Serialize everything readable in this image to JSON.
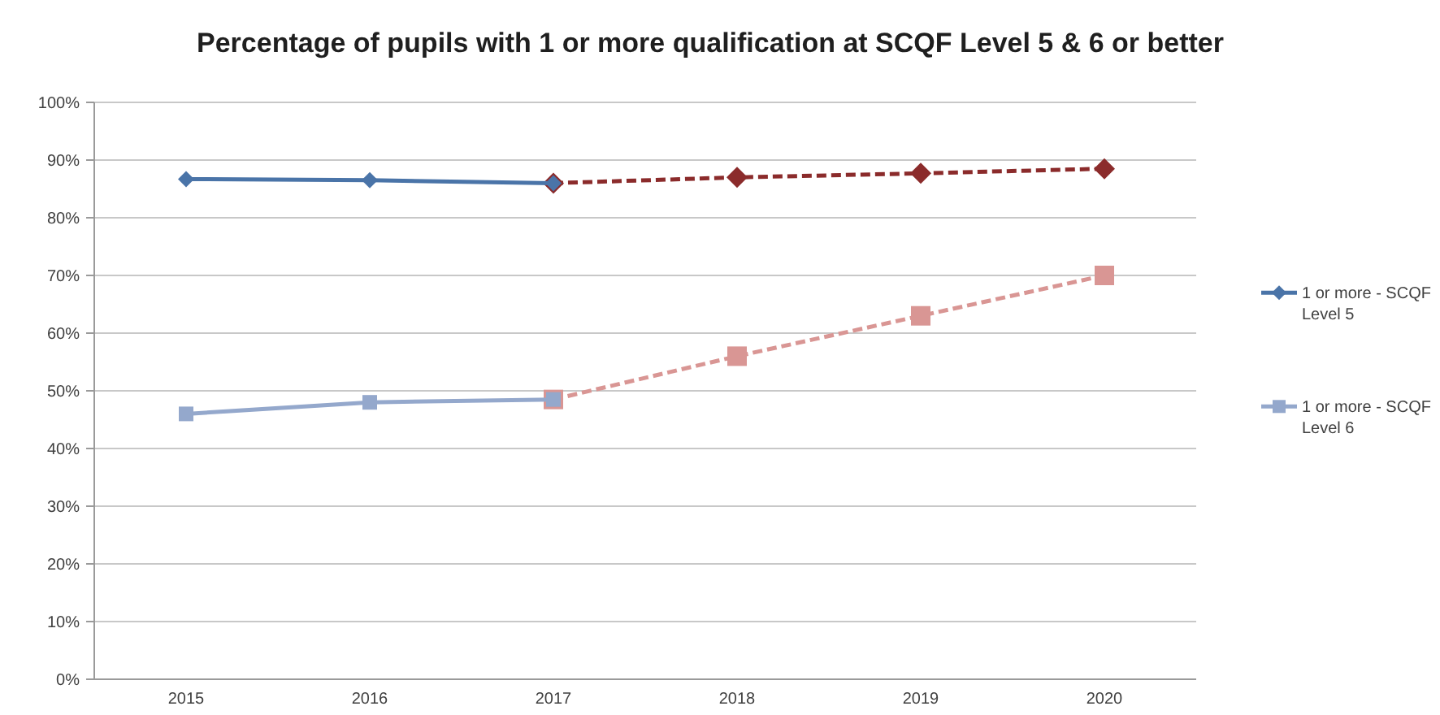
{
  "chart_data": {
    "type": "line",
    "title": "Percentage of pupils with 1 or more qualification at SCQF Level 5 & 6 or better",
    "categories": [
      "2015",
      "2016",
      "2017",
      "2018",
      "2019",
      "2020"
    ],
    "series": [
      {
        "color": "#8b2b2b",
        "values": [
          null,
          null,
          86,
          87,
          87.7,
          88.5
        ],
        "marker": "diamond",
        "line_style": "dashed"
      },
      {
        "color": "#d99694",
        "values": [
          null,
          null,
          48.5,
          56,
          63,
          70
        ],
        "marker": "square",
        "line_style": "dashed"
      },
      {
        "name": "1 or more - SCQF Level 5",
        "color": "#4a74a8",
        "values": [
          86.7,
          86.5,
          86,
          null,
          null,
          null
        ],
        "marker": "diamond",
        "line_style": "solid"
      },
      {
        "name": "1 or more - SCQF Level 6",
        "color": "#94a8cc",
        "values": [
          46,
          48,
          48.5,
          null,
          null,
          null
        ],
        "marker": "square",
        "line_style": "solid"
      }
    ],
    "ylim": [
      0,
      100
    ],
    "yticks": [
      {
        "value": 0,
        "label": "0%"
      },
      {
        "value": 10,
        "label": "10%"
      },
      {
        "value": 20,
        "label": "20%"
      },
      {
        "value": 30,
        "label": "30%"
      },
      {
        "value": 40,
        "label": "40%"
      },
      {
        "value": 50,
        "label": "50%"
      },
      {
        "value": 60,
        "label": "60%"
      },
      {
        "value": 70,
        "label": "70%"
      },
      {
        "value": 80,
        "label": "80%"
      },
      {
        "value": 90,
        "label": "90%"
      },
      {
        "value": 100,
        "label": "100%"
      }
    ],
    "grid": "y",
    "legend": "right"
  }
}
